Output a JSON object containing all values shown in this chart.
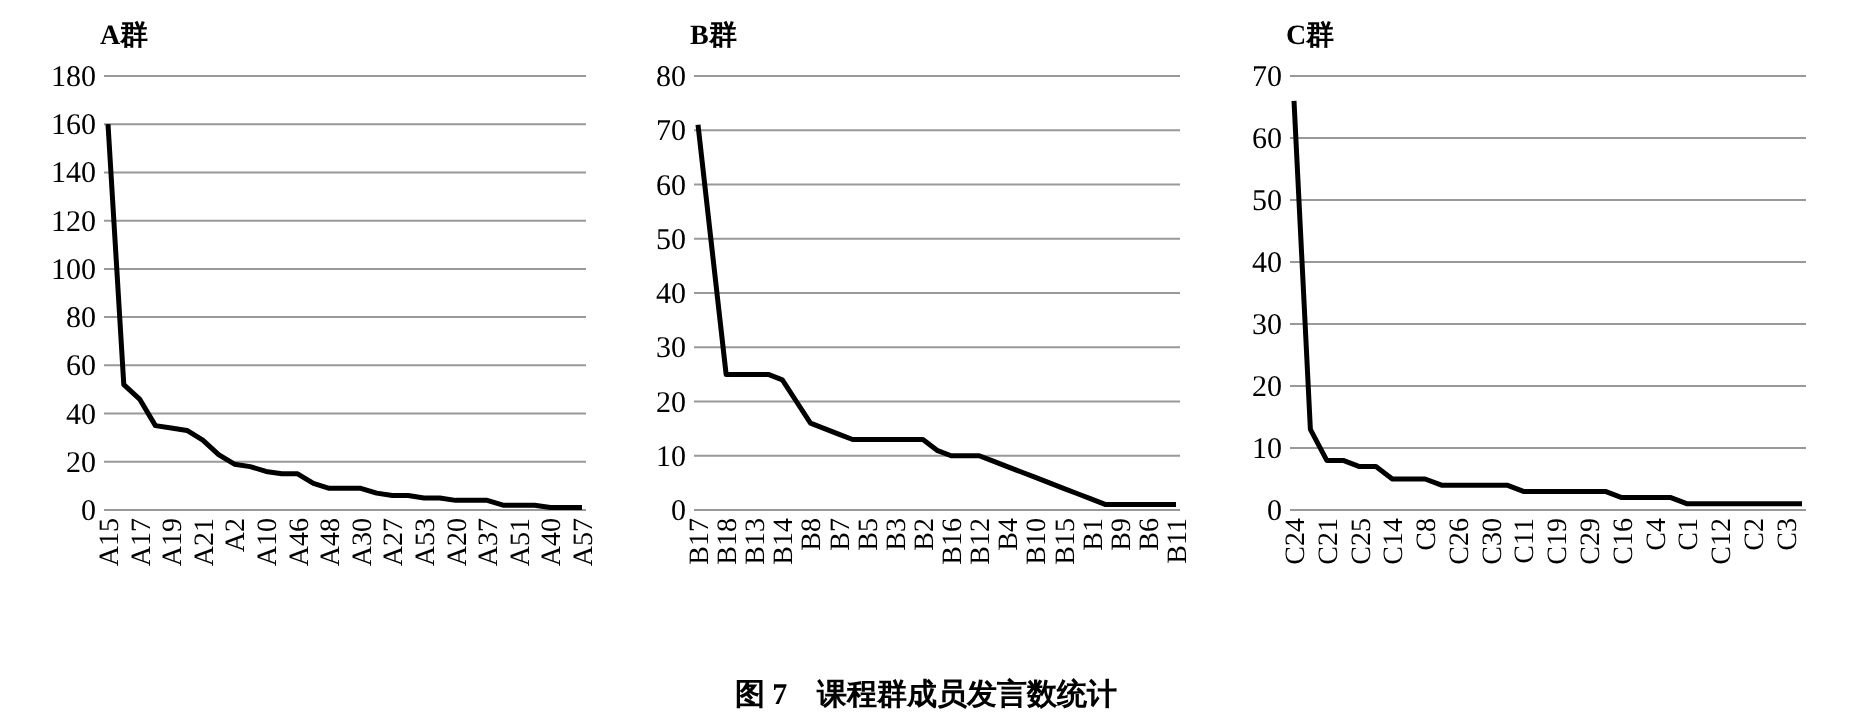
{
  "chart_data": [
    {
      "type": "line",
      "title": "A群",
      "color": "#000000",
      "grid": "y",
      "ylim": [
        0,
        180
      ],
      "yticks": [
        0,
        20,
        40,
        60,
        80,
        100,
        120,
        140,
        160,
        180
      ],
      "categories": [
        "A15",
        null,
        "A17",
        null,
        "A19",
        null,
        "A21",
        null,
        "A2",
        null,
        "A10",
        null,
        "A46",
        null,
        "A48",
        null,
        "A30",
        null,
        "A27",
        null,
        "A53",
        null,
        "A20",
        null,
        "A37",
        null,
        "A51",
        null,
        "A40",
        null,
        "A57"
      ],
      "values": [
        160,
        52,
        46,
        35,
        34,
        33,
        29,
        23,
        19,
        18,
        16,
        15,
        15,
        11,
        9,
        9,
        9,
        7,
        6,
        6,
        5,
        5,
        4,
        4,
        4,
        2,
        2,
        2,
        1,
        1,
        1
      ],
      "annotations": [
        "图 7　课程群成员发言数统计"
      ]
    },
    {
      "type": "line",
      "title": "B群",
      "color": "#000000",
      "grid": "y",
      "ylim": [
        0,
        80
      ],
      "yticks": [
        0,
        10,
        20,
        30,
        40,
        50,
        60,
        70,
        80
      ],
      "categories": [
        "B17",
        null,
        "B18",
        null,
        "B13",
        null,
        "B14",
        null,
        "B8",
        null,
        "B7",
        null,
        "B5",
        null,
        "B3",
        null,
        "B2",
        null,
        "B16",
        null,
        "B12",
        null,
        "B4",
        null,
        "B10",
        null,
        "B15",
        null,
        "B1",
        null,
        "B9",
        null,
        "B6",
        null,
        "B11"
      ],
      "values": [
        71,
        48,
        25,
        25,
        25,
        25,
        24,
        20,
        16,
        15,
        14,
        13,
        13,
        13,
        13,
        13,
        13,
        11,
        10,
        10,
        10,
        9,
        8,
        7,
        6,
        5,
        4,
        3,
        2,
        1,
        1,
        1,
        1,
        1,
        1
      ]
    },
    {
      "type": "line",
      "title": "C群",
      "color": "#000000",
      "grid": "y",
      "ylim": [
        0,
        70
      ],
      "yticks": [
        0,
        10,
        20,
        30,
        40,
        50,
        60,
        70
      ],
      "categories": [
        "C24",
        null,
        "C21",
        null,
        "C25",
        null,
        "C14",
        null,
        "C8",
        null,
        "C26",
        null,
        "C30",
        null,
        "C11",
        null,
        "C19",
        null,
        "C29",
        null,
        "C16",
        null,
        "C4",
        null,
        "C1",
        null,
        "C12",
        null,
        "C2",
        null,
        "C3",
        null
      ],
      "values": [
        66,
        13,
        8,
        8,
        7,
        7,
        5,
        5,
        5,
        4,
        4,
        4,
        4,
        4,
        3,
        3,
        3,
        3,
        3,
        3,
        2,
        2,
        2,
        2,
        1,
        1,
        1,
        1,
        1,
        1,
        1,
        1
      ]
    }
  ]
}
